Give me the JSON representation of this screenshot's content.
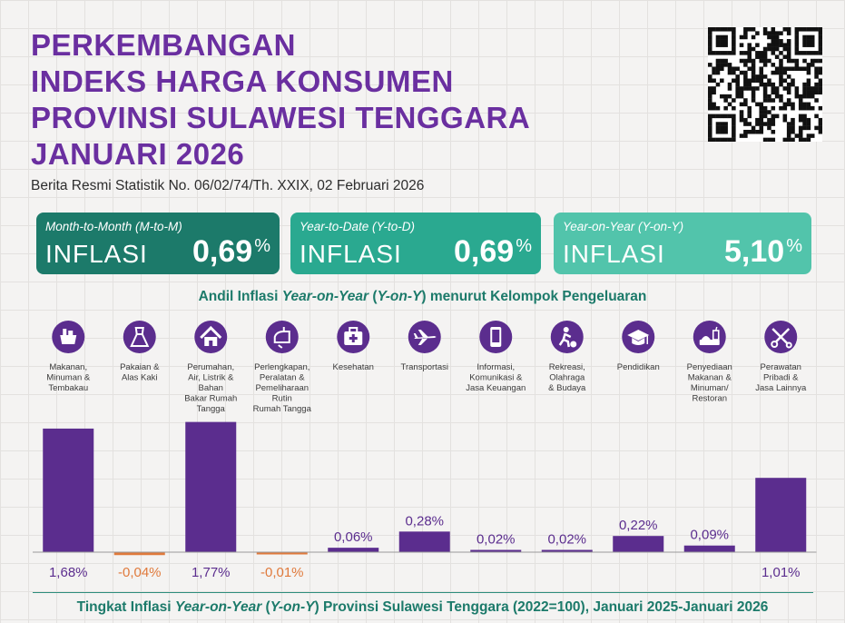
{
  "header": {
    "title_lines": [
      "PERKEMBANGAN",
      "INDEKS HARGA KONSUMEN",
      "PROVINSI SULAWESI TENGGARA",
      "JANUARI 2026"
    ],
    "subtitle": "Berita Resmi Statistik No. 06/02/74/Th. XXIX, 02 Februari 2026"
  },
  "cards": [
    {
      "period": "Month-to-Month (M-to-M)",
      "word": "INFLASI",
      "value": "0,69",
      "unit": "%"
    },
    {
      "period": "Year-to-Date (Y-to-D)",
      "word": "INFLASI",
      "value": "0,69",
      "unit": "%"
    },
    {
      "period": "Year-on-Year (Y-on-Y)",
      "word": "INFLASI",
      "value": "5,10",
      "unit": "%"
    }
  ],
  "section_title_parts": [
    "Andil Inflasi ",
    "Year-on-Year",
    " (",
    "Y-on-Y",
    ") menurut Kelompok Pengeluaran"
  ],
  "footer_title_parts": [
    "Tingkat Inflasi ",
    "Year-on-Year",
    " (",
    "Y-on-Y",
    ") Provinsi Sulawesi Tenggara (2022=100), Januari 2025-Januari 2026"
  ],
  "colors": {
    "purple": "#5b2d8e",
    "negative": "#e07a3c",
    "teal_dark": "#1c7a6a",
    "teal_mid": "#2aa990",
    "teal_light": "#52c4ab"
  },
  "icons": [
    "grocery-basket-icon",
    "dress-icon",
    "house-icon",
    "iron-icon",
    "first-aid-kit-icon",
    "airplane-icon",
    "smartphone-icon",
    "soccer-icon",
    "graduation-cap-icon",
    "food-tray-icon",
    "scissors-comb-icon"
  ],
  "chart_data": {
    "type": "bar",
    "title": "Andil Inflasi Year-on-Year (Y-on-Y) menurut Kelompok Pengeluaran",
    "categories": [
      [
        "Makanan,",
        "Minuman &",
        "Tembakau"
      ],
      [
        "Pakaian &",
        "Alas Kaki"
      ],
      [
        "Perumahan,",
        "Air, Listrik &",
        "Bahan",
        "Bakar Rumah",
        "Tangga"
      ],
      [
        "Perlengkapan,",
        "Peralatan &",
        "Pemeliharaan",
        "Rutin",
        "Rumah Tangga"
      ],
      [
        "Kesehatan"
      ],
      [
        "Transportasi"
      ],
      [
        "Informasi,",
        "Komunikasi &",
        "Jasa Keuangan"
      ],
      [
        "Rekreasi,",
        "Olahraga",
        "& Budaya"
      ],
      [
        "Pendidikan"
      ],
      [
        "Penyediaan",
        "Makanan &",
        "Minuman/",
        "Restoran"
      ],
      [
        "Perawatan",
        "Pribadi &",
        "Jasa Lainnya"
      ]
    ],
    "values": [
      1.68,
      -0.04,
      1.77,
      -0.01,
      0.06,
      0.28,
      0.02,
      0.02,
      0.22,
      0.09,
      1.01
    ],
    "value_labels": [
      "1,68%",
      "-0,04%",
      "1,77%",
      "-0,01%",
      "0,06%",
      "0,28%",
      "0,02%",
      "0,02%",
      "0,22%",
      "0,09%",
      "1,01%"
    ]
  }
}
